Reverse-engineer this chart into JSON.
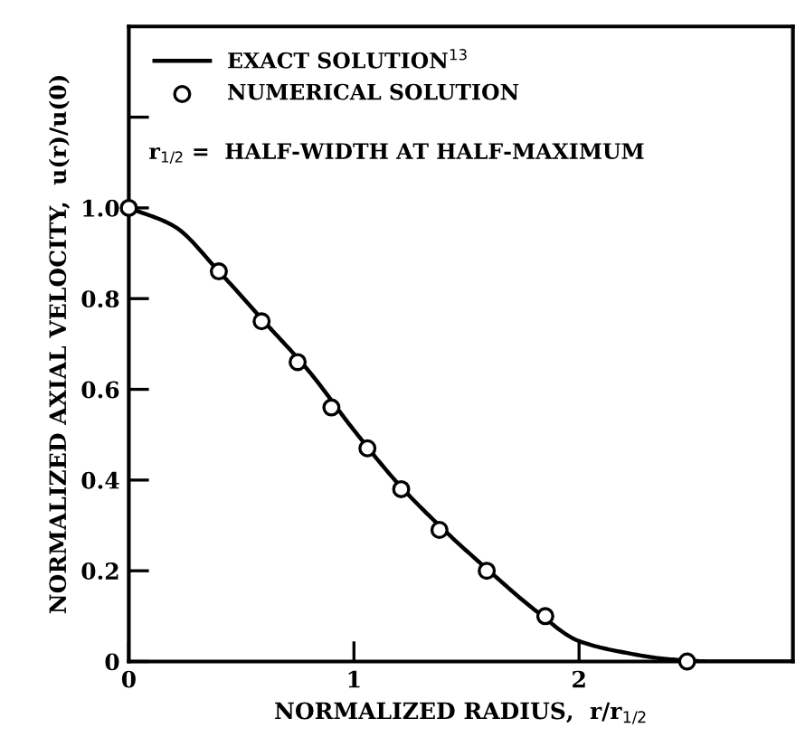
{
  "chart_data": {
    "type": "line",
    "xlabel": "NORMALIZED RADIUS,  r/r$_{1/2}$",
    "ylabel": "NORMALIZED AXIAL VELOCITY,  u(r)/u(0)",
    "series": [
      {
        "name": "EXACT SOLUTION$^{13}$",
        "color": "#000000",
        "marker": "none",
        "line_style": "solid",
        "x": [
          0,
          0.2,
          0.4,
          0.6,
          0.8,
          1.0,
          1.2,
          1.4,
          1.6,
          1.8,
          2.0,
          2.2,
          2.4,
          2.6,
          2.95
        ],
        "values": [
          1.0,
          0.96,
          0.86,
          0.75,
          0.64,
          0.51,
          0.39,
          0.29,
          0.2,
          0.115,
          0.045,
          0.02,
          0.005,
          0,
          0
        ]
      },
      {
        "name": "NUMERICAL SOLUTION",
        "type": "scatter",
        "color": "#000000",
        "marker": "circle",
        "x": [
          0,
          0.4,
          0.59,
          0.75,
          0.9,
          1.06,
          1.21,
          1.38,
          1.59,
          1.85,
          2.48
        ],
        "values": [
          1.0,
          0.86,
          0.75,
          0.66,
          0.56,
          0.47,
          0.38,
          0.29,
          0.2,
          0.1,
          0
        ]
      }
    ],
    "annotations": [
      "r$_{1/2}$ =  HALF-WIDTH AT HALF-MAXIMUM"
    ],
    "xlim": [
      0,
      2.95
    ],
    "ylim": [
      0,
      1.4
    ],
    "xticks": [
      0,
      1,
      2
    ],
    "yticks": [
      {
        "value": 0,
        "label": "0"
      },
      {
        "value": 0.2,
        "label": "0.2"
      },
      {
        "value": 0.4,
        "label": "0.4"
      },
      {
        "value": 0.6,
        "label": "0.6"
      },
      {
        "value": 0.8,
        "label": "0.8"
      },
      {
        "value": 1.0,
        "label": "1.0"
      },
      {
        "value": 1.2,
        "label": null
      }
    ],
    "grid": false,
    "legend": "top left"
  }
}
